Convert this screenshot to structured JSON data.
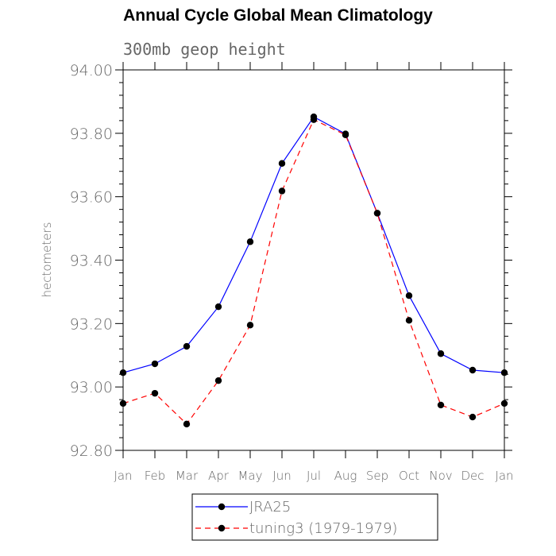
{
  "chart_data": {
    "type": "line",
    "title": "Annual Cycle Global Mean Climatology",
    "subtitle": "300mb geop height",
    "xlabel": "",
    "ylabel": "hectometers",
    "categories": [
      "Jan",
      "Feb",
      "Mar",
      "Apr",
      "May",
      "Jun",
      "Jul",
      "Aug",
      "Sep",
      "Oct",
      "Nov",
      "Dec",
      "Jan"
    ],
    "ylim": [
      92.8,
      94.0
    ],
    "yticks": [
      "92.80",
      "93.00",
      "93.20",
      "93.40",
      "93.60",
      "93.80",
      "94.00"
    ],
    "grid": false,
    "legend_position": "bottom",
    "series": [
      {
        "name": "JRA25",
        "color": "#0000ff",
        "dash": "solid",
        "values": [
          93.045,
          93.073,
          93.128,
          93.253,
          93.458,
          93.705,
          93.852,
          93.798,
          93.548,
          93.288,
          93.105,
          93.053,
          93.045
        ]
      },
      {
        "name": "tuning3 (1979-1979)",
        "color": "#ff0000",
        "dash": "dashed",
        "values": [
          92.948,
          92.98,
          92.883,
          93.02,
          93.195,
          93.618,
          93.843,
          93.795,
          93.548,
          93.21,
          92.943,
          92.905,
          92.948
        ]
      }
    ]
  }
}
